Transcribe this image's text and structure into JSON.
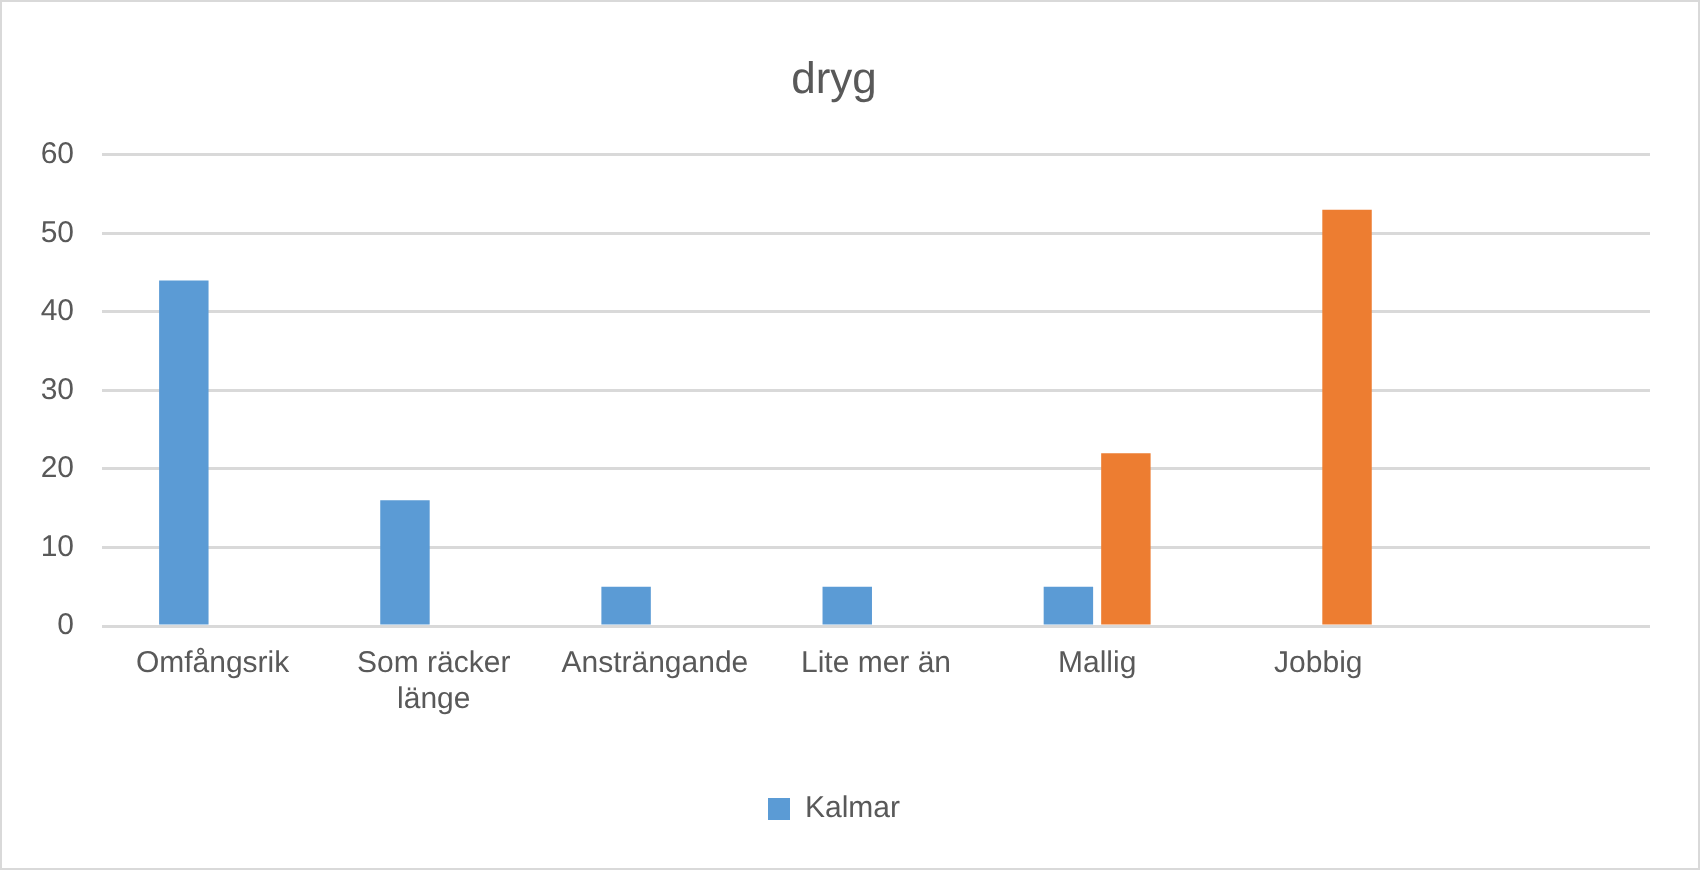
{
  "chart_data": {
    "type": "bar",
    "title": "dryg",
    "categories": [
      "Omfångsrik",
      "Som räcker länge",
      "Ansträngande",
      "Lite mer än",
      "Mallig",
      "Jobbig",
      null
    ],
    "series": [
      {
        "name": "Kalmar",
        "color": "#5b9bd5",
        "values": [
          44,
          16,
          5,
          5,
          5,
          null,
          null
        ]
      },
      {
        "color": "#ed7d31",
        "values": [
          null,
          null,
          null,
          null,
          22,
          53,
          null
        ]
      }
    ],
    "ylim": [
      0,
      60
    ],
    "yticks": [
      0,
      10,
      20,
      30,
      40,
      50,
      60
    ],
    "grid": "y",
    "legend": "bottom"
  }
}
